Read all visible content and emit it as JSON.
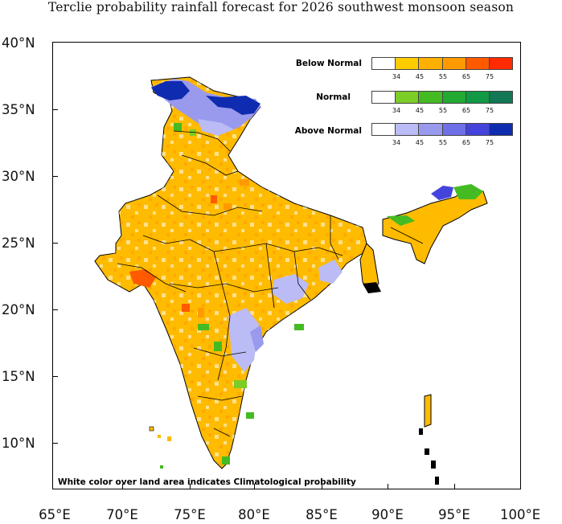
{
  "title": "Terclie probability rainfall forecast for 2026 southwest monsoon  season",
  "axes": {
    "y_ticks": [
      "40°N",
      "35°N",
      "30°N",
      "25°N",
      "20°N",
      "15°N",
      "10°N"
    ],
    "x_ticks": [
      "65°E",
      "70°E",
      "75°E",
      "80°E",
      "85°E",
      "90°E",
      "95°E",
      "100°E"
    ]
  },
  "legend": {
    "categories": [
      {
        "label": "Below Normal",
        "colors": [
          "#ffffff",
          "#ffcc00",
          "#ffb000",
          "#ff9a00",
          "#ff5a00",
          "#ff2a00"
        ]
      },
      {
        "label": "Normal",
        "colors": [
          "#ffffff",
          "#7ccd26",
          "#44bb22",
          "#22aa33",
          "#119944",
          "#117755"
        ]
      },
      {
        "label": "Above Normal",
        "colors": [
          "#ffffff",
          "#bbbbf5",
          "#9999ee",
          "#6f6fe8",
          "#4444dd",
          "#0f2cb0"
        ]
      }
    ],
    "ticks": [
      "34",
      "45",
      "55",
      "65",
      "75"
    ]
  },
  "note": "White color over land area indicates Climatological probability",
  "colors": {
    "dominant": "#ffbb00",
    "border": "#000000"
  }
}
